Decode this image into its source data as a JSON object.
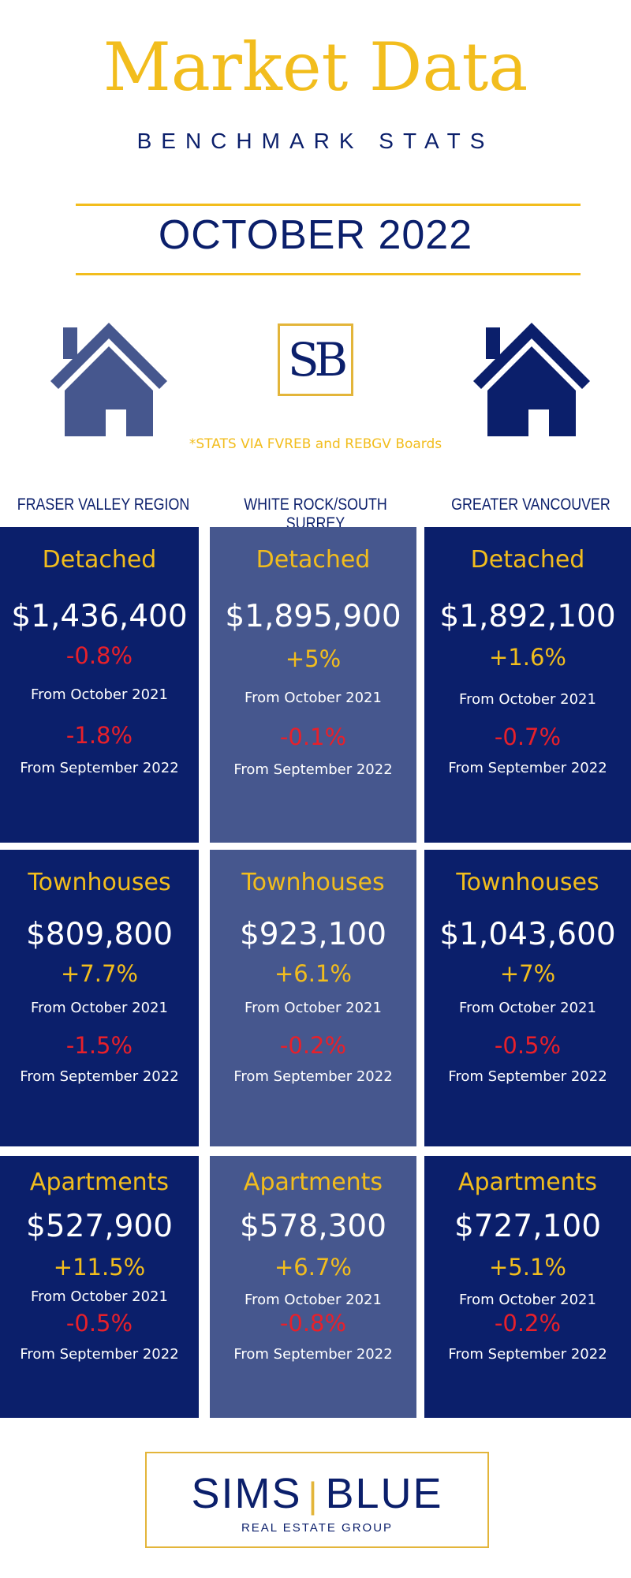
{
  "header": {
    "title": "Market Data",
    "subtitle": "BENCHMARK STATS",
    "period": "OCTOBER 2022"
  },
  "logo_text": "SB",
  "source_note": "*STATS VIA FVREB and REBGV Boards",
  "colors": {
    "navy": "#0b1f6b",
    "slate": "#46578e",
    "gold": "#f2bd1d",
    "red": "#e8202a"
  },
  "icons": [
    "house-icon",
    "house-icon"
  ],
  "regions": [
    {
      "name": "FRASER VALLEY REGION",
      "cards": [
        {
          "type": "Detached",
          "price": "$1,436,400",
          "yoy": "-0.8%",
          "yoy_label": "From October 2021",
          "mom": "-1.8%",
          "mom_label": "From September 2022"
        },
        {
          "type": "Townhouses",
          "price": "$809,800",
          "yoy": "+7.7%",
          "yoy_label": "From October 2021",
          "mom": "-1.5%",
          "mom_label": "From September 2022"
        },
        {
          "type": "Apartments",
          "price": "$527,900",
          "yoy": "+11.5%",
          "yoy_label": "From October 2021",
          "mom": "-0.5%",
          "mom_label": "From September 2022"
        }
      ]
    },
    {
      "name": "WHITE ROCK/SOUTH SURREY",
      "cards": [
        {
          "type": "Detached",
          "price": "$1,895,900",
          "yoy": "+5%",
          "yoy_label": "From October 2021",
          "mom": "-0.1%",
          "mom_label": "From September 2022"
        },
        {
          "type": "Townhouses",
          "price": "$923,100",
          "yoy": "+6.1%",
          "yoy_label": "From October 2021",
          "mom": "-0.2%",
          "mom_label": "From September 2022"
        },
        {
          "type": "Apartments",
          "price": "$578,300",
          "yoy": "+6.7%",
          "yoy_label": "From October 2021",
          "mom": "-0.8%",
          "mom_label": "From September 2022"
        }
      ]
    },
    {
      "name": "GREATER VANCOUVER",
      "cards": [
        {
          "type": "Detached",
          "price": "$1,892,100",
          "yoy": "+1.6%",
          "yoy_label": "From October 2021",
          "mom": "-0.7%",
          "mom_label": "From September 2022"
        },
        {
          "type": "Townhouses",
          "price": "$1,043,600",
          "yoy": "+7%",
          "yoy_label": "From October 2021",
          "mom": "-0.5%",
          "mom_label": "From September 2022"
        },
        {
          "type": "Apartments",
          "price": "$727,100",
          "yoy": "+5.1%",
          "yoy_label": "From October 2021",
          "mom": "-0.2%",
          "mom_label": "From September 2022"
        }
      ]
    }
  ],
  "footer": {
    "name_left": "SIMS",
    "name_right": "BLUE",
    "tagline": "REAL ESTATE GROUP"
  }
}
